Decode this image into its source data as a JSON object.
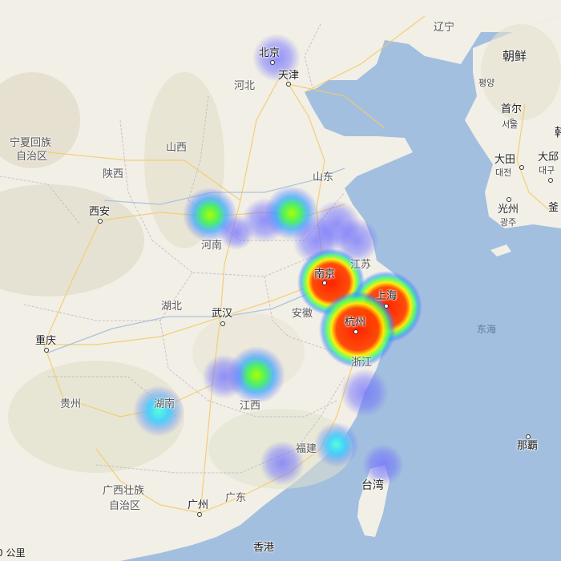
{
  "map": {
    "provinces": [
      {
        "id": "liaoning",
        "text": "辽宁"
      },
      {
        "id": "hebei",
        "text": "河北"
      },
      {
        "id": "ningxia",
        "text": "宁夏回族"
      },
      {
        "id": "ningxia2",
        "text": "自治区"
      },
      {
        "id": "shanxi",
        "text": "山西"
      },
      {
        "id": "shaanxi",
        "text": "陕西"
      },
      {
        "id": "shandong",
        "text": "山东"
      },
      {
        "id": "henan",
        "text": "河南"
      },
      {
        "id": "jiangsu",
        "text": "江苏"
      },
      {
        "id": "anhui",
        "text": "安徽"
      },
      {
        "id": "hubei",
        "text": "湖北"
      },
      {
        "id": "zhejiang",
        "text": "浙江"
      },
      {
        "id": "jiangxi",
        "text": "江西"
      },
      {
        "id": "hunan",
        "text": "湖南"
      },
      {
        "id": "guizhou",
        "text": "贵州"
      },
      {
        "id": "fujian",
        "text": "福建"
      },
      {
        "id": "guangxi",
        "text": "广西壮族"
      },
      {
        "id": "guangxi2",
        "text": "自治区"
      },
      {
        "id": "guangdong",
        "text": "广东"
      }
    ],
    "cities": [
      {
        "id": "beijing",
        "text": "北京"
      },
      {
        "id": "tianjin",
        "text": "天津"
      },
      {
        "id": "xian",
        "text": "西安"
      },
      {
        "id": "nanjing",
        "text": "南京"
      },
      {
        "id": "shanghai",
        "text": "上海"
      },
      {
        "id": "hangzhou",
        "text": "杭州"
      },
      {
        "id": "wuhan",
        "text": "武汉"
      },
      {
        "id": "chongqing",
        "text": "重庆"
      },
      {
        "id": "guangzhou",
        "text": "广州"
      },
      {
        "id": "hongkong",
        "text": "香港"
      },
      {
        "id": "taiwan",
        "text": "台湾"
      },
      {
        "id": "naha",
        "text": "那覇"
      }
    ],
    "korea": {
      "country": "朝鲜",
      "pyongyang": "평양",
      "seoul_cn": "首尔",
      "seoul_kr": "서울",
      "daejeon_cn": "大田",
      "daejeon_kr": "대전",
      "daegu_cn": "大邱",
      "daegu_kr": "대구",
      "gwangju_cn": "光州",
      "gwangju_kr": "광주",
      "busan_cn": "釜",
      "korea_partial": "韩"
    },
    "sea": "东海",
    "scale": "0 公里"
  },
  "heatmap": [
    {
      "name": "beijing",
      "weight": 0.25
    },
    {
      "name": "henan-west",
      "weight": 0.55
    },
    {
      "name": "henan-east",
      "weight": 0.5
    },
    {
      "name": "jiangsu-north",
      "weight": 0.2
    },
    {
      "name": "nanjing",
      "weight": 0.85
    },
    {
      "name": "shanghai",
      "weight": 1.0
    },
    {
      "name": "hangzhou",
      "weight": 1.0
    },
    {
      "name": "jiangxi",
      "weight": 0.55
    },
    {
      "name": "hubei-east",
      "weight": 0.2
    },
    {
      "name": "hunan",
      "weight": 0.4
    },
    {
      "name": "zhejiang-south",
      "weight": 0.2
    },
    {
      "name": "fujian-coast",
      "weight": 0.35
    },
    {
      "name": "fujian-south",
      "weight": 0.2
    },
    {
      "name": "taiwan-north",
      "weight": 0.3
    }
  ]
}
